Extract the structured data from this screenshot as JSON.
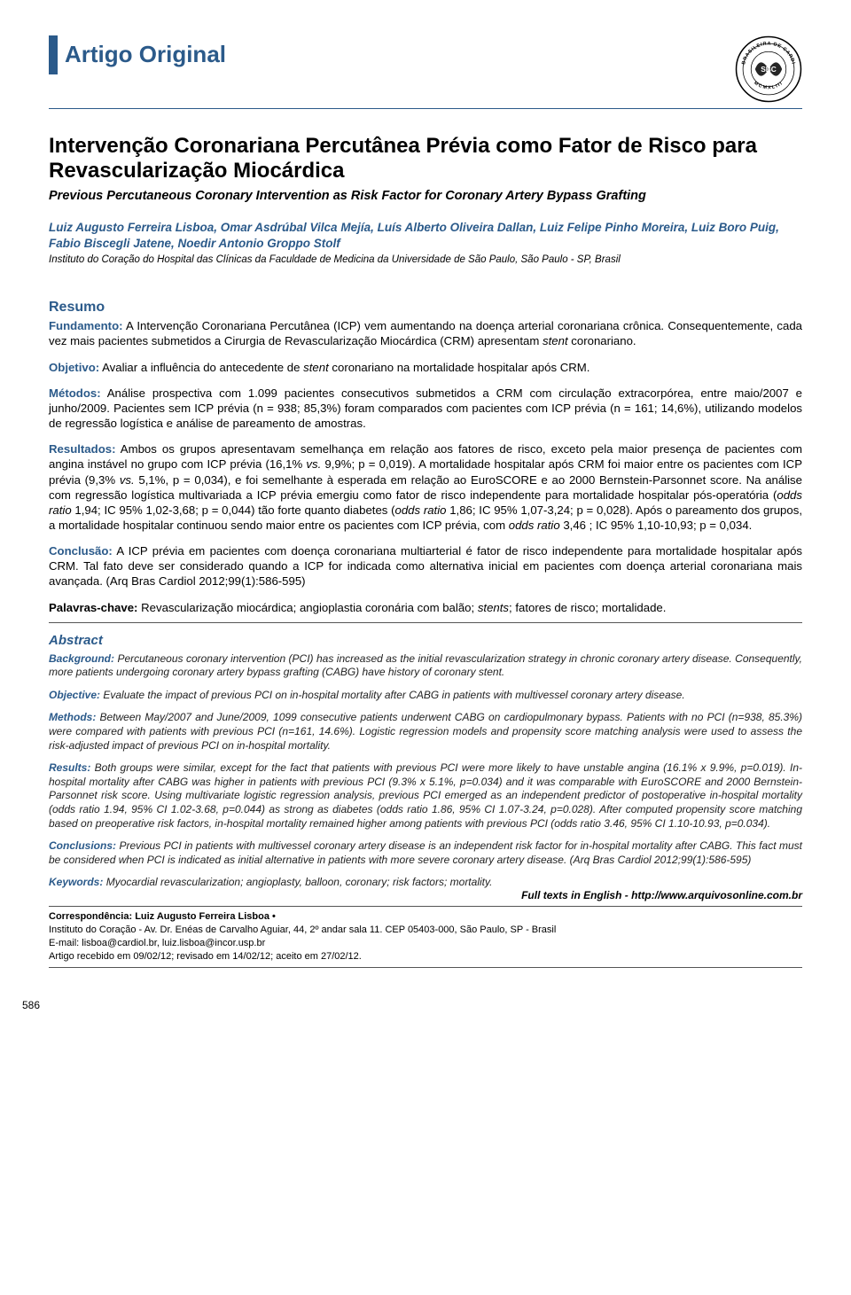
{
  "section_label": "Artigo Original",
  "seal_outer_text": "BRASILEIRA DE CARDI",
  "seal_center": "SBC",
  "seal_year": "MCMXLIII",
  "title_pt": "Intervenção Coronariana Percutânea Prévia como Fator de Risco para Revascularização Miocárdica",
  "title_en": "Previous Percutaneous Coronary Intervention as Risk Factor for Coronary Artery Bypass Grafting",
  "authors": "Luiz Augusto Ferreira Lisboa, Omar Asdrúbal Vilca Mejía, Luís Alberto Oliveira Dallan, Luiz Felipe Pinho Moreira, Luiz Boro Puig, Fabio Biscegli Jatene, Noedir Antonio Groppo Stolf",
  "affiliation": "Instituto do Coração do Hospital das Clínicas da Faculdade de Medicina da Universidade de São Paulo, São Paulo - SP, Brasil",
  "resumo_heading": "Resumo",
  "resumo": {
    "fundamento_label": "Fundamento:",
    "fundamento_text": " A Intervenção Coronariana Percutânea (ICP) vem aumentando na doença arterial coronariana crônica. Consequentemente, cada vez mais pacientes submetidos a Cirurgia de Revascularização Miocárdica (CRM) apresentam <em>stent</em> coronariano.",
    "objetivo_label": "Objetivo:",
    "objetivo_text": " Avaliar a influência do antecedente de <em>stent</em> coronariano na mortalidade hospitalar após CRM.",
    "metodos_label": "Métodos:",
    "metodos_text": " Análise prospectiva com 1.099 pacientes consecutivos submetidos a CRM com circulação extracorpórea, entre maio/2007 e junho/2009. Pacientes sem ICP prévia (n = 938; 85,3%) foram comparados com pacientes com ICP prévia (n = 161; 14,6%), utilizando modelos de regressão logística e análise de pareamento de amostras.",
    "resultados_label": "Resultados:",
    "resultados_text": " Ambos os grupos apresentavam semelhança em relação aos fatores de risco, exceto pela maior presença de pacientes com angina instável no grupo com ICP prévia (16,1% <em>vs.</em> 9,9%; p = 0,019). A mortalidade hospitalar após CRM foi maior entre os pacientes com ICP prévia (9,3% <em>vs.</em> 5,1%, p = 0,034), e foi semelhante à esperada em relação ao EuroSCORE e ao 2000 Bernstein-Parsonnet score. Na análise com regressão logística multivariada a ICP prévia emergiu como fator de risco independente para mortalidade hospitalar pós-operatória (<em>odds ratio</em> 1,94; IC 95% 1,02-3,68; p = 0,044) tão forte quanto diabetes (<em>odds ratio</em> 1,86; IC 95% 1,07-3,24; p = 0,028). Após o pareamento dos grupos, a mortalidade hospitalar continuou sendo maior entre os pacientes com ICP prévia, com <em>odds ratio</em> 3,46 ; IC 95% 1,10-10,93; p = 0,034.",
    "conclusao_label": "Conclusão:",
    "conclusao_text": " A ICP prévia em pacientes com doença coronariana multiarterial é fator de risco independente para mortalidade hospitalar após CRM. Tal fato deve ser considerado quando a ICP for indicada como alternativa inicial em pacientes com doença arterial coronariana mais avançada. (Arq Bras Cardiol 2012;99(1):586-595)",
    "palavras_label": "Palavras-chave:",
    "palavras_text": " Revascularização miocárdica; angioplastia coronária com balão; <em>stents</em>; fatores de risco; mortalidade."
  },
  "abstract_heading": "Abstract",
  "abstract": {
    "background_label": "Background:",
    "background_text": " Percutaneous coronary intervention (PCI) has increased as the initial revascularization strategy in chronic coronary artery disease. Consequently, more patients undergoing coronary artery bypass grafting (CABG) have history of coronary stent.",
    "objective_label": "Objective:",
    "objective_text": " Evaluate the impact of previous PCI on in-hospital mortality after CABG in patients with multivessel coronary artery disease.",
    "methods_label": "Methods:",
    "methods_text": " Between May/2007 and June/2009, 1099 consecutive patients underwent CABG on cardiopulmonary bypass. Patients with no PCI (n=938, 85.3%) were compared with patients with previous PCI (n=161, 14.6%). Logistic regression models and propensity score matching analysis were used to assess the risk-adjusted impact of previous PCI on in-hospital mortality.",
    "results_label": "Results:",
    "results_text": " Both groups were similar, except for the fact that patients with previous PCI were more likely to have unstable angina (16.1% x 9.9%, p=0.019). In-hospital mortality after CABG was higher in patients with previous PCI (9.3% x 5.1%, p=0.034) and it was comparable with EuroSCORE and 2000 Bernstein-Parsonnet risk score. Using multivariate logistic regression analysis, previous PCI emerged as an independent predictor of postoperative in-hospital mortality (odds ratio 1.94, 95% CI 1.02-3.68, p=0.044) as strong as diabetes (odds ratio 1.86, 95% CI 1.07-3.24, p=0.028). After computed propensity score matching based on preoperative risk factors, in-hospital mortality remained higher among patients with previous PCI (odds ratio 3.46, 95% CI 1.10-10.93, p=0.034).",
    "conclusions_label": "Conclusions:",
    "conclusions_text": " Previous PCI in patients with multivessel coronary artery disease is an independent risk factor for in-hospital mortality after CABG. This fact must be considered when PCI is indicated as initial alternative in patients with more severe coronary artery disease. (Arq Bras Cardiol 2012;99(1):586-595)",
    "keywords_label": "Keywords:",
    "keywords_text": " Myocardial revascularization; angioplasty, balloon, coronary; risk factors; mortality."
  },
  "fulltext_note": "Full texts in English - http://www.arquivosonline.com.br",
  "correspondence": {
    "label": "Correspondência: ",
    "name": "Luiz Augusto Ferreira Lisboa •",
    "address": "Instituto do Coração - Av. Dr. Enéas de Carvalho Aguiar, 44, 2º andar sala 11. CEP 05403-000, São Paulo, SP - Brasil",
    "email": "E-mail: lisboa@cardiol.br, luiz.lisboa@incor.usp.br",
    "dates": "Artigo recebido em 09/02/12; revisado em 14/02/12; aceito em 27/02/12."
  },
  "page_number": "586"
}
